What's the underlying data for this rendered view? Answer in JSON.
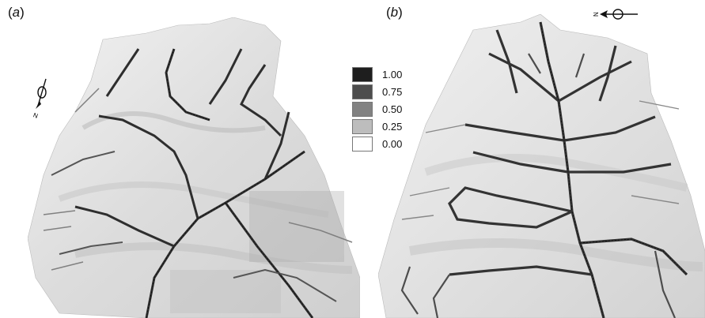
{
  "panels": [
    {
      "label": "a"
    },
    {
      "label": "b"
    }
  ],
  "north_arrow_letter": "N",
  "legend": {
    "entries": [
      {
        "label": "1.00",
        "color": "#1e1e1e"
      },
      {
        "label": "0.75",
        "color": "#4d4d4d"
      },
      {
        "label": "0.50",
        "color": "#828282"
      },
      {
        "label": "0.25",
        "color": "#bdbdbd"
      },
      {
        "label": "0.00",
        "color": "#ffffff"
      }
    ]
  }
}
